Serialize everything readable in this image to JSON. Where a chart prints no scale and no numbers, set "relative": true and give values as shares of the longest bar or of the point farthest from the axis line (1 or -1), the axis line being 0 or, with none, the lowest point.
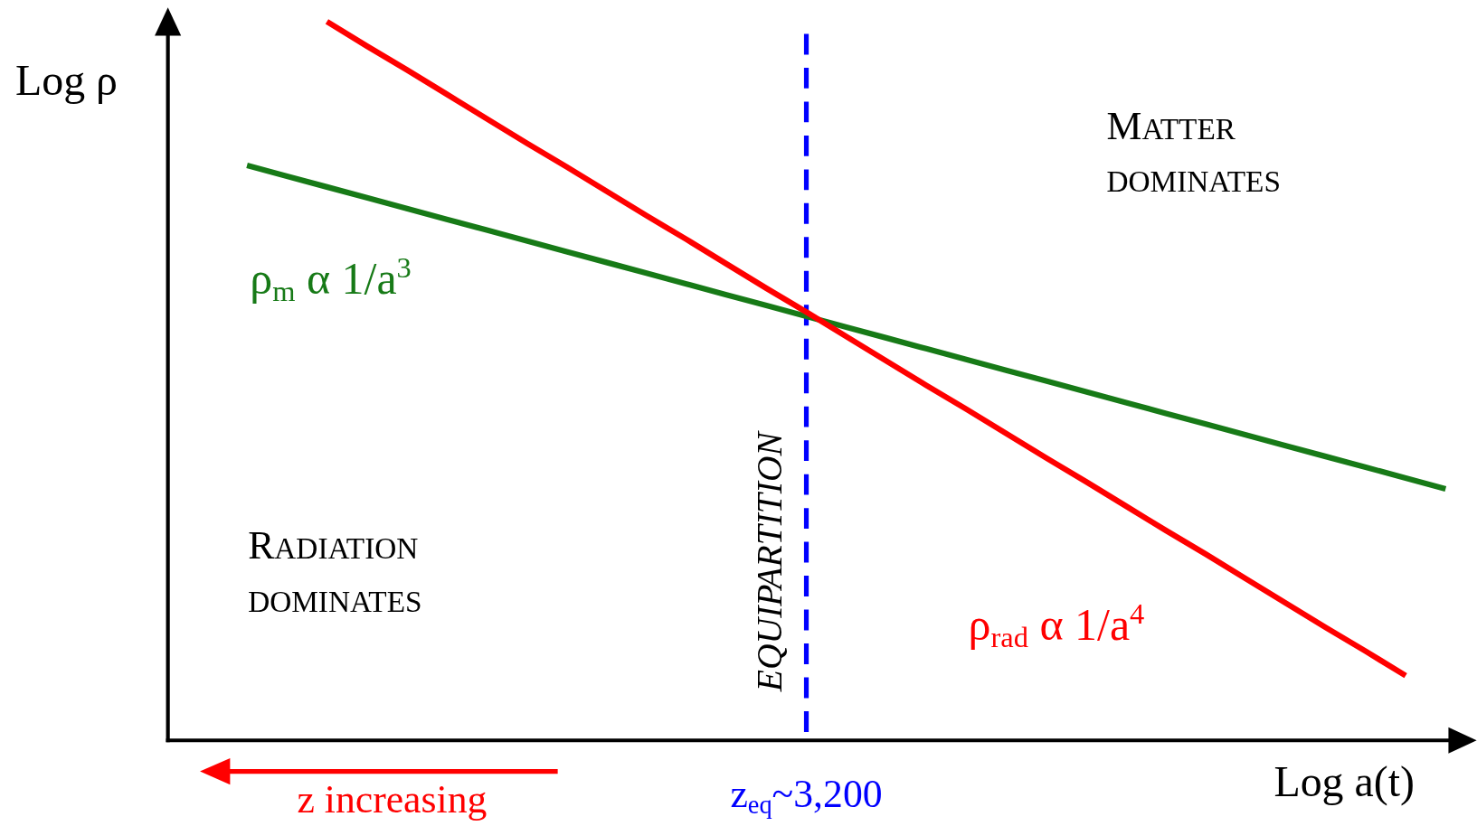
{
  "chart_data": {
    "type": "line",
    "relative": true,
    "line_style": "solid",
    "xlabel": "Log a(t)",
    "ylabel": "Log ρ",
    "categories": [
      null,
      null,
      null,
      null,
      null,
      null,
      null,
      null,
      null,
      null,
      null,
      null,
      null,
      null,
      null,
      null,
      null,
      null,
      null,
      null,
      null,
      null,
      null,
      null,
      null,
      null,
      null,
      null,
      null,
      null,
      null
    ],
    "series": [
      {
        "name": "ρ$_{m}$ α 1/a$^{3}$",
        "color": "#177a17",
        "values": [
          0.8,
          0.785,
          0.77,
          0.755,
          0.74,
          0.725,
          0.71,
          0.695,
          0.68,
          0.665,
          0.65,
          0.635,
          0.62,
          0.605,
          0.59,
          0.575,
          0.56,
          0.545,
          0.53,
          0.515,
          0.5,
          0.485,
          0.47,
          0.455,
          0.44,
          0.425,
          0.41,
          0.395,
          0.38,
          0.365,
          0.35
        ]
      },
      {
        "name": "ρ$_{rad}$ α 1/a$^{4}$",
        "color": "#ff0000",
        "values": [
          null,
          null,
          1,
          0.966,
          0.933,
          0.899,
          0.865,
          0.831,
          0.798,
          0.764,
          0.73,
          0.697,
          0.663,
          0.629,
          0.596,
          0.562,
          0.528,
          0.494,
          0.461,
          0.427,
          0.393,
          0.36,
          0.326,
          0.292,
          0.259,
          0.225,
          0.191,
          0.157,
          0.124,
          0.09,
          null
        ]
      }
    ],
    "annotations": [
      "MATTER DOMINATES",
      "RADIATION DOMINATES",
      "EQUIPARTITION",
      "z increasing",
      "z$_{eq}$~3,200"
    ]
  }
}
